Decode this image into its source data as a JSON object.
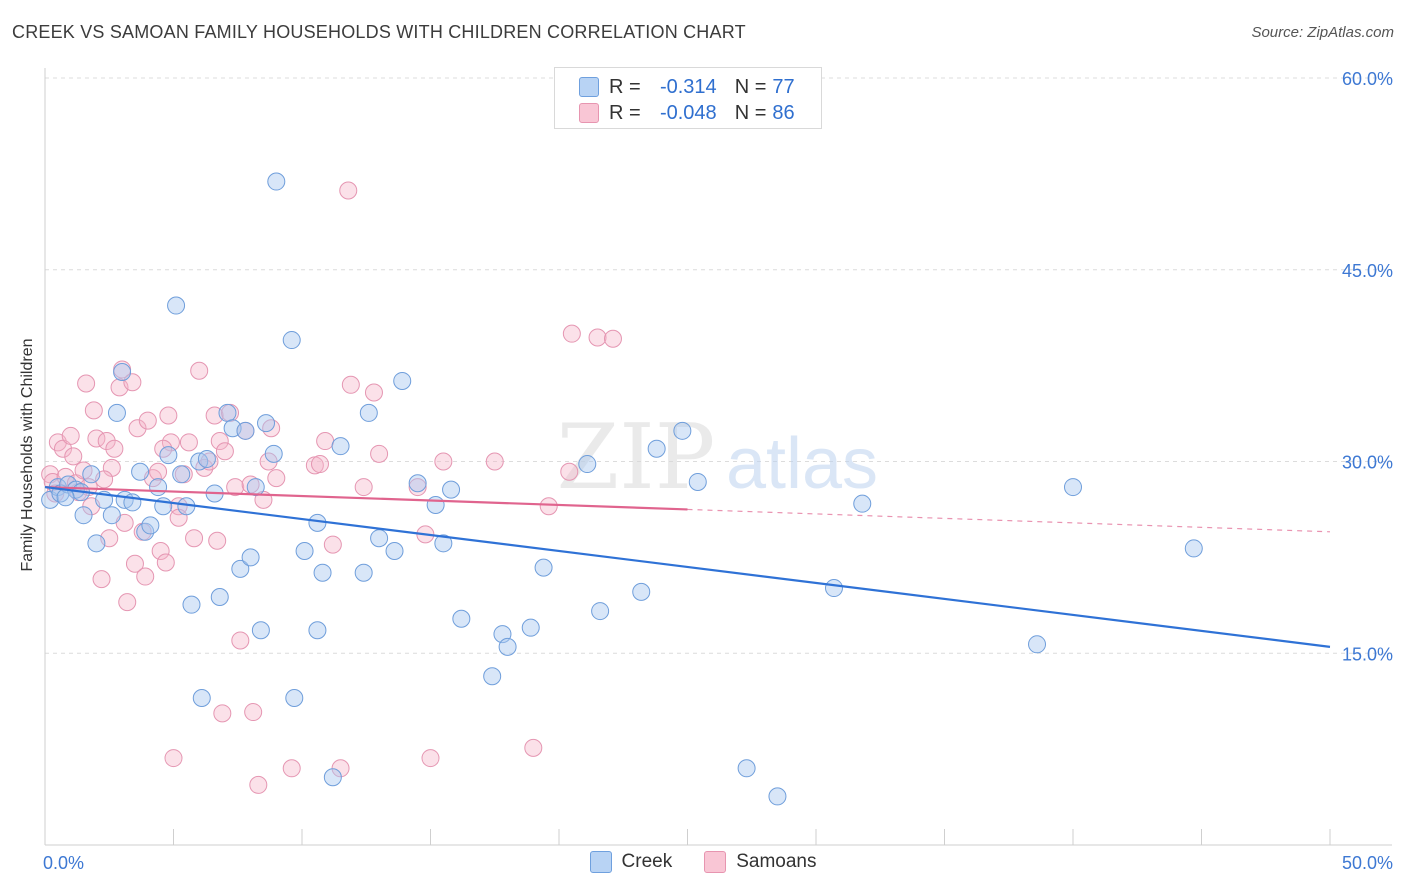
{
  "header": {
    "title": "CREEK VS SAMOAN FAMILY HOUSEHOLDS WITH CHILDREN CORRELATION CHART",
    "source": "Source: ZipAtlas.com"
  },
  "watermark": {
    "zip": "ZIP",
    "atlas": "atlas"
  },
  "legend": {
    "r_label": "R =",
    "n_label": "N =",
    "creek": {
      "r": "-0.314",
      "n": "77",
      "fill": "#b8d3f4",
      "stroke": "#6fa0de"
    },
    "samoans": {
      "r": "-0.048",
      "n": "86",
      "fill": "#f9c6d5",
      "stroke": "#e795b0"
    }
  },
  "colors": {
    "creek_point_fill": "rgba(168,200,240,0.45)",
    "creek_point_stroke": "#6f9edb",
    "creek_line": "#2f72d6",
    "samoan_point_fill": "rgba(245,180,200,0.40)",
    "samoan_point_stroke": "#e596b2",
    "samoan_line": "#e0648e",
    "grid": "#dcdcdc",
    "tick_label": "#3d78d3"
  },
  "chart_data": {
    "type": "scatter",
    "title": "CREEK VS SAMOAN FAMILY HOUSEHOLDS WITH CHILDREN CORRELATION CHART",
    "xlabel": "",
    "ylabel": "Family Households with Children",
    "xlim": [
      0,
      50
    ],
    "ylim": [
      0,
      60
    ],
    "x_tick_labels": [
      "0.0%",
      "50.0%"
    ],
    "y_ticks": [
      15,
      30,
      45,
      60
    ],
    "y_tick_labels": [
      "15.0%",
      "30.0%",
      "45.0%",
      "60.0%"
    ],
    "grid": true,
    "legend_position": "top-center",
    "series": [
      {
        "name": "Creek",
        "r": -0.314,
        "n": 77,
        "trend": {
          "x0": 0,
          "y0": 28.0,
          "x1": 50,
          "y1": 15.5,
          "solid_to": 50
        },
        "points": [
          [
            0.2,
            27.0
          ],
          [
            0.5,
            28.0
          ],
          [
            0.6,
            27.5
          ],
          [
            0.9,
            28.2
          ],
          [
            1.2,
            27.8
          ],
          [
            1.4,
            27.6
          ],
          [
            1.5,
            25.8
          ],
          [
            1.8,
            29.0
          ],
          [
            2.0,
            23.6
          ],
          [
            2.3,
            27.0
          ],
          [
            2.6,
            25.8
          ],
          [
            2.8,
            33.8
          ],
          [
            3.0,
            37.0
          ],
          [
            3.1,
            27.0
          ],
          [
            3.4,
            26.8
          ],
          [
            3.7,
            29.2
          ],
          [
            3.9,
            24.5
          ],
          [
            4.1,
            25.0
          ],
          [
            4.4,
            28.0
          ],
          [
            4.6,
            26.5
          ],
          [
            4.8,
            30.5
          ],
          [
            5.1,
            42.2
          ],
          [
            5.3,
            29.0
          ],
          [
            5.5,
            26.5
          ],
          [
            5.7,
            18.8
          ],
          [
            6.0,
            30.0
          ],
          [
            6.1,
            11.5
          ],
          [
            6.3,
            30.2
          ],
          [
            6.6,
            27.5
          ],
          [
            6.8,
            19.4
          ],
          [
            7.1,
            33.8
          ],
          [
            7.3,
            32.6
          ],
          [
            7.6,
            21.6
          ],
          [
            7.8,
            32.4
          ],
          [
            8.0,
            22.5
          ],
          [
            8.2,
            28.0
          ],
          [
            8.4,
            16.8
          ],
          [
            8.6,
            33.0
          ],
          [
            8.9,
            30.6
          ],
          [
            9.0,
            51.9
          ],
          [
            9.6,
            39.5
          ],
          [
            9.7,
            11.5
          ],
          [
            10.1,
            23.0
          ],
          [
            10.6,
            25.2
          ],
          [
            10.6,
            16.8
          ],
          [
            10.8,
            21.3
          ],
          [
            11.2,
            5.3
          ],
          [
            11.5,
            31.2
          ],
          [
            12.4,
            21.3
          ],
          [
            12.6,
            33.8
          ],
          [
            13.0,
            24.0
          ],
          [
            13.6,
            23.0
          ],
          [
            13.9,
            36.3
          ],
          [
            14.5,
            28.3
          ],
          [
            15.2,
            26.6
          ],
          [
            15.5,
            23.6
          ],
          [
            15.8,
            27.8
          ],
          [
            16.2,
            17.7
          ],
          [
            17.4,
            13.2
          ],
          [
            17.8,
            16.5
          ],
          [
            18.0,
            15.5
          ],
          [
            18.9,
            17.0
          ],
          [
            19.4,
            21.7
          ],
          [
            21.1,
            29.8
          ],
          [
            21.6,
            18.3
          ],
          [
            23.2,
            19.8
          ],
          [
            23.8,
            31.0
          ],
          [
            24.8,
            32.4
          ],
          [
            25.4,
            28.4
          ],
          [
            27.3,
            6.0
          ],
          [
            28.5,
            3.8
          ],
          [
            30.7,
            20.1
          ],
          [
            31.8,
            26.7
          ],
          [
            38.6,
            15.7
          ],
          [
            40.0,
            28.0
          ],
          [
            44.7,
            23.2
          ],
          [
            0.8,
            27.2
          ]
        ]
      },
      {
        "name": "Samoans",
        "r": -0.048,
        "n": 86,
        "trend": {
          "x0": 0,
          "y0": 28.0,
          "x1": 50,
          "y1": 24.5,
          "solid_to": 25
        },
        "points": [
          [
            0.2,
            29.0
          ],
          [
            0.3,
            28.4
          ],
          [
            0.4,
            27.5
          ],
          [
            0.5,
            31.5
          ],
          [
            0.7,
            31.0
          ],
          [
            0.8,
            28.8
          ],
          [
            1.0,
            32.0
          ],
          [
            1.1,
            30.4
          ],
          [
            1.2,
            28.3
          ],
          [
            1.3,
            27.6
          ],
          [
            1.5,
            29.3
          ],
          [
            1.6,
            36.1
          ],
          [
            1.7,
            28.0
          ],
          [
            1.9,
            34.0
          ],
          [
            2.0,
            31.8
          ],
          [
            2.2,
            20.8
          ],
          [
            2.4,
            31.6
          ],
          [
            2.5,
            24.0
          ],
          [
            2.6,
            29.5
          ],
          [
            2.7,
            31.0
          ],
          [
            2.9,
            35.8
          ],
          [
            3.0,
            37.2
          ],
          [
            3.1,
            25.2
          ],
          [
            3.2,
            19.0
          ],
          [
            3.4,
            36.2
          ],
          [
            3.5,
            22.0
          ],
          [
            3.6,
            32.6
          ],
          [
            3.8,
            24.5
          ],
          [
            3.9,
            21.0
          ],
          [
            4.0,
            33.2
          ],
          [
            4.2,
            28.7
          ],
          [
            4.4,
            29.2
          ],
          [
            4.5,
            23.0
          ],
          [
            4.7,
            22.1
          ],
          [
            4.8,
            33.6
          ],
          [
            4.9,
            31.5
          ],
          [
            5.0,
            6.8
          ],
          [
            5.2,
            26.5
          ],
          [
            5.4,
            29.0
          ],
          [
            5.6,
            31.5
          ],
          [
            5.8,
            24.0
          ],
          [
            6.0,
            37.1
          ],
          [
            6.2,
            29.5
          ],
          [
            6.4,
            30.0
          ],
          [
            6.6,
            33.6
          ],
          [
            6.7,
            23.8
          ],
          [
            6.8,
            31.6
          ],
          [
            6.9,
            10.3
          ],
          [
            7.0,
            30.8
          ],
          [
            7.2,
            33.8
          ],
          [
            7.4,
            28.0
          ],
          [
            7.6,
            16.0
          ],
          [
            7.8,
            32.4
          ],
          [
            8.0,
            28.2
          ],
          [
            8.1,
            10.4
          ],
          [
            8.3,
            4.7
          ],
          [
            8.5,
            27.0
          ],
          [
            8.7,
            30.0
          ],
          [
            8.8,
            32.6
          ],
          [
            9.0,
            28.7
          ],
          [
            9.6,
            6.0
          ],
          [
            10.5,
            29.7
          ],
          [
            10.7,
            29.8
          ],
          [
            10.9,
            31.6
          ],
          [
            11.2,
            23.5
          ],
          [
            11.5,
            6.0
          ],
          [
            11.9,
            36.0
          ],
          [
            12.4,
            28.0
          ],
          [
            12.8,
            35.4
          ],
          [
            13.0,
            30.6
          ],
          [
            14.5,
            28.0
          ],
          [
            14.8,
            24.3
          ],
          [
            15.0,
            6.8
          ],
          [
            15.5,
            30.0
          ],
          [
            17.5,
            30.0
          ],
          [
            19.0,
            7.6
          ],
          [
            19.6,
            26.5
          ],
          [
            20.4,
            29.2
          ],
          [
            20.5,
            40.0
          ],
          [
            21.5,
            39.7
          ],
          [
            22.1,
            39.6
          ],
          [
            5.2,
            25.6
          ],
          [
            2.3,
            28.6
          ],
          [
            4.6,
            31.0
          ],
          [
            1.8,
            26.5
          ],
          [
            11.8,
            51.2
          ]
        ]
      }
    ]
  }
}
